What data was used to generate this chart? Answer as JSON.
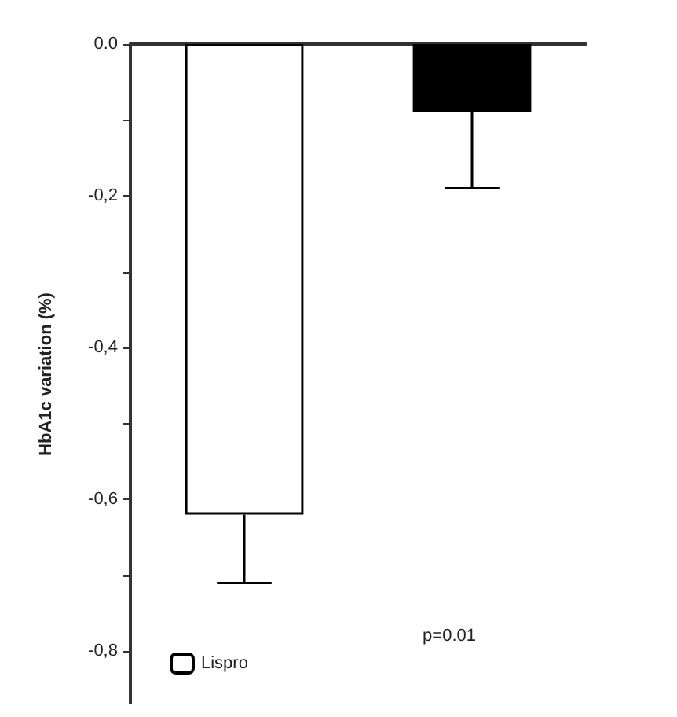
{
  "chart_data": {
    "type": "bar",
    "ylabel": "HbA1c variation (%)",
    "categories": [
      null,
      null
    ],
    "series": [
      {
        "name": "Lispro",
        "color": "#ffffff",
        "values": [
          -0.62,
          null
        ],
        "errors": [
          [
            -0.71,
            -0.62
          ],
          null
        ]
      },
      {
        "color": "#000000",
        "values": [
          null,
          -0.09
        ],
        "errors": [
          null,
          [
            -0.19,
            -0.09
          ]
        ]
      }
    ],
    "ylim": [
      -0.87,
      0
    ],
    "yticks": [
      {
        "value": 0,
        "label": "0.0"
      },
      {
        "value": -0.1,
        "label": null
      },
      {
        "value": -0.2,
        "label": "-0,2"
      },
      {
        "value": -0.3,
        "label": null
      },
      {
        "value": -0.4,
        "label": "-0,4"
      },
      {
        "value": -0.5,
        "label": null
      },
      {
        "value": -0.6,
        "label": "-0,6"
      },
      {
        "value": -0.7,
        "label": null
      },
      {
        "value": -0.8,
        "label": "-0,8"
      }
    ],
    "annotations": [
      "p=0.01"
    ],
    "grid": false,
    "legend": "bottom left"
  }
}
